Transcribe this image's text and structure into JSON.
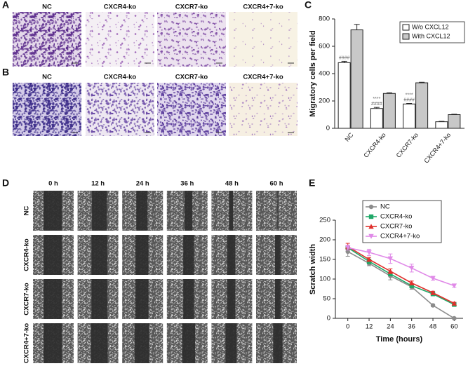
{
  "panel_labels": [
    "A",
    "B",
    "C",
    "D",
    "E"
  ],
  "transwell": {
    "rows": [
      {
        "captions": [
          "NC",
          "CXCR4-ko",
          "CXCR7-ko",
          "CXCR4+7-ko"
        ]
      },
      {
        "captions": [
          "NC",
          "CXCR4-ko",
          "CXCR7-ko",
          "CXCR4+7-ko"
        ]
      }
    ]
  },
  "wound_healing": {
    "times": [
      "0 h",
      "12 h",
      "24 h",
      "36 h",
      "48 h",
      "60 h"
    ],
    "groups": [
      "NC",
      "CXCR4-ko",
      "CXCR7-ko",
      "CXCR4+7-ko"
    ]
  },
  "chart_data": [
    {
      "type": "bar",
      "ylabel": "Migratory cells per field",
      "categories": [
        "NC",
        "CXCR4-ko",
        "CXCR7-ko",
        "CXCR4+7-ko"
      ],
      "series": [
        {
          "name": "W/o CXCL12",
          "color": "#ffffff",
          "values": [
            480,
            145,
            178,
            48
          ],
          "errors": [
            10,
            8,
            4,
            3
          ]
        },
        {
          "name": "With CXCL12",
          "color": "#c8c8c8",
          "values": [
            720,
            255,
            333,
            100
          ],
          "errors": [
            40,
            5,
            4,
            3
          ]
        }
      ],
      "annotations": [
        [
          "####"
        ],
        [
          "****",
          "####"
        ],
        [
          "****",
          "####"
        ],
        []
      ],
      "ylim": [
        0,
        800
      ],
      "yticks": [
        0,
        200,
        400,
        600,
        800
      ],
      "grid": false,
      "legend": "upper right"
    },
    {
      "type": "line",
      "xlabel": "Time (hours)",
      "ylabel": "Scratch width",
      "x": [
        0,
        12,
        24,
        36,
        48,
        60
      ],
      "series": [
        {
          "name": "NC",
          "color": "#8c8c8c",
          "marker": "circle",
          "values": [
            170,
            140,
            108,
            80,
            33,
            0
          ],
          "errors": [
            12,
            6,
            10,
            6,
            3,
            2
          ]
        },
        {
          "name": "CXCR4-ko",
          "color": "#1fa868",
          "marker": "square",
          "values": [
            180,
            145,
            113,
            83,
            62,
            35
          ],
          "errors": [
            5,
            6,
            5,
            5,
            4,
            3
          ]
        },
        {
          "name": "CXCR7-ko",
          "color": "#e0302c",
          "marker": "triangle",
          "values": [
            183,
            150,
            120,
            90,
            65,
            38
          ],
          "errors": [
            8,
            5,
            6,
            5,
            4,
            3
          ]
        },
        {
          "name": "CXCR4+7-ko",
          "color": "#e08ae8",
          "marker": "triangle-down",
          "values": [
            180,
            168,
            152,
            128,
            102,
            83
          ],
          "errors": [
            6,
            8,
            12,
            10,
            5,
            4
          ]
        }
      ],
      "xlim": [
        -7,
        65
      ],
      "ylim": [
        0,
        250
      ],
      "xticks": [
        0,
        12,
        24,
        36,
        48,
        60
      ],
      "yticks": [
        0,
        50,
        100,
        150,
        200,
        250
      ],
      "grid": false,
      "legend": "upper center"
    }
  ]
}
